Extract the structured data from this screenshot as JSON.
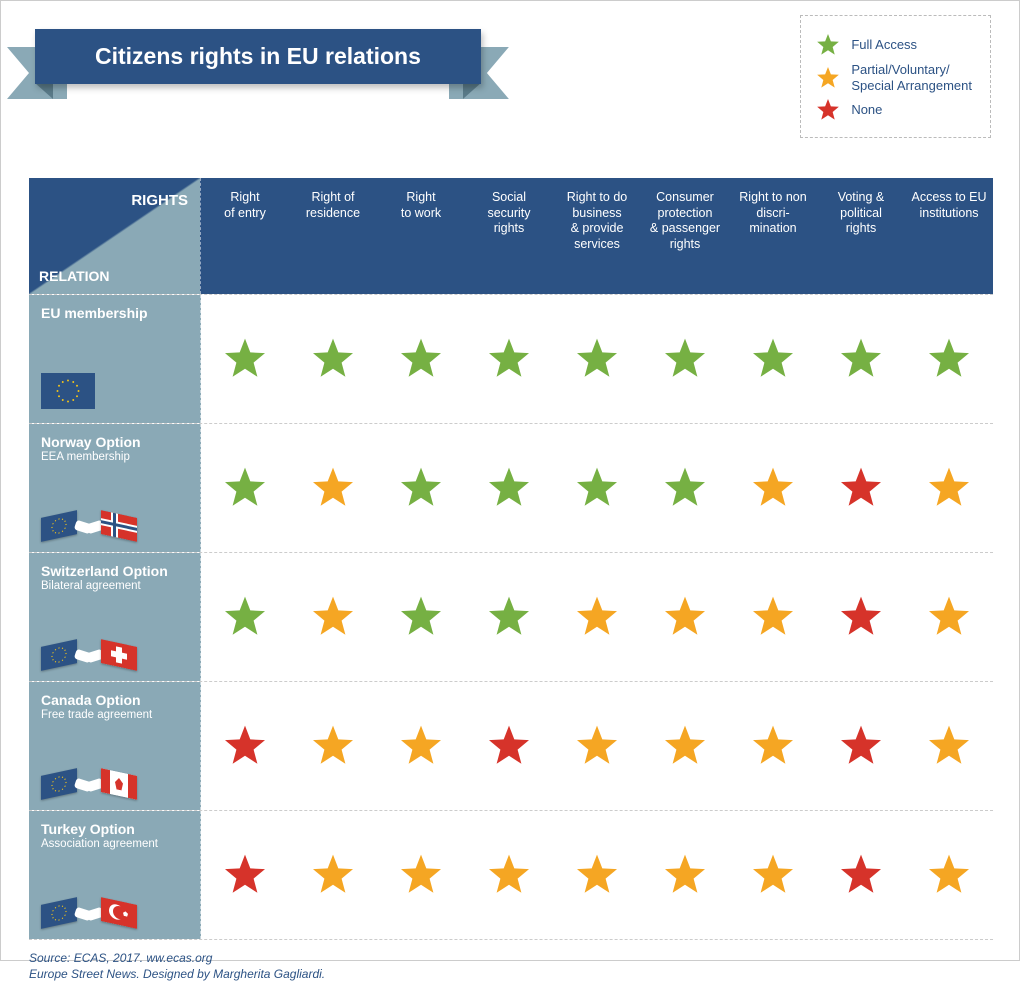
{
  "title": "Citizens rights in EU relations",
  "colors": {
    "header_bg": "#2c5284",
    "row_label_bg": "#8aa9b6",
    "full": "#76b043",
    "partial": "#f5a623",
    "none": "#d6332a",
    "text_footer": "#2c5284"
  },
  "legend": [
    {
      "level": "full",
      "label": "Full  Access"
    },
    {
      "level": "partial",
      "label": "Partial/Voluntary/\nSpecial Arrangement"
    },
    {
      "level": "none",
      "label": "None"
    }
  ],
  "corner_labels": {
    "rights": "RIGHTS",
    "relation": "RELATION"
  },
  "columns": [
    "Right\nof entry",
    "Right of\nresidence",
    "Right\nto work",
    "Social\nsecurity\nrights",
    "Right to do\nbusiness\n& provide\nservices",
    "Consumer\nprotection\n& passenger\nrights",
    "Right to non\ndiscri-\nmination",
    "Voting &\npolitical\nrights",
    "Access to EU\ninstitutions"
  ],
  "rows": [
    {
      "title": "EU membership",
      "sub": "",
      "flag_style": "eu-only",
      "partner_flag": null,
      "values": [
        "full",
        "full",
        "full",
        "full",
        "full",
        "full",
        "full",
        "full",
        "full"
      ]
    },
    {
      "title": "Norway Option",
      "sub": "EEA membership",
      "flag_style": "handshake",
      "partner_flag": "norway",
      "values": [
        "full",
        "partial",
        "full",
        "full",
        "full",
        "full",
        "partial",
        "none",
        "partial"
      ]
    },
    {
      "title": "Switzerland Option",
      "sub": "Bilateral agreement",
      "flag_style": "handshake",
      "partner_flag": "switzerland",
      "values": [
        "full",
        "partial",
        "full",
        "full",
        "partial",
        "partial",
        "partial",
        "none",
        "partial"
      ]
    },
    {
      "title": "Canada Option",
      "sub": "Free trade agreement",
      "flag_style": "handshake",
      "partner_flag": "canada",
      "values": [
        "none",
        "partial",
        "partial",
        "none",
        "partial",
        "partial",
        "partial",
        "none",
        "partial"
      ]
    },
    {
      "title": "Turkey Option",
      "sub": "Association agreement",
      "flag_style": "handshake",
      "partner_flag": "turkey",
      "values": [
        "none",
        "partial",
        "partial",
        "partial",
        "partial",
        "partial",
        "partial",
        "none",
        "partial"
      ]
    }
  ],
  "footer": {
    "line1": "Source: ECAS, 2017. ww.ecas.org",
    "line2": "Europe Street News. Designed by Margherita Gagliardi."
  }
}
